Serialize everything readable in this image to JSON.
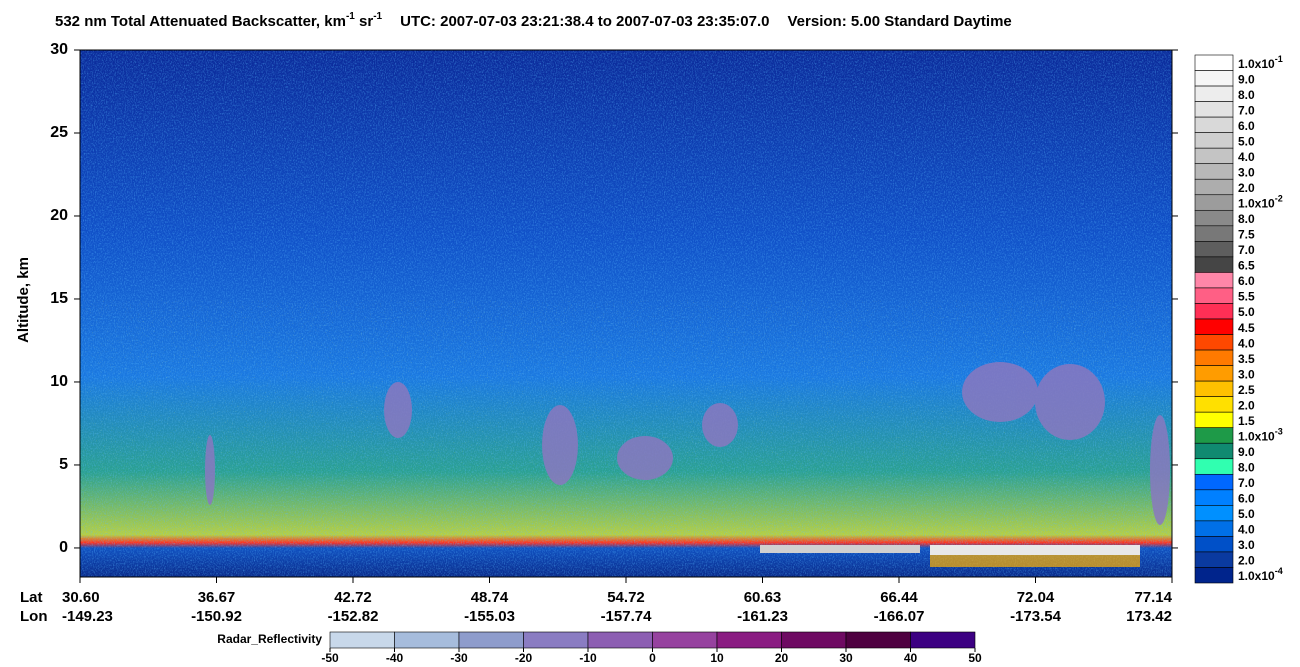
{
  "chart_data": {
    "type": "heatmap",
    "title": {
      "main": "532 nm Total Attenuated Backscatter, km",
      "sup1": "-1",
      "mid": " sr",
      "sup2": "-1",
      "utc": "UTC:  2007-07-03 23:21:38.4  to  2007-07-03 23:35:07.0",
      "version": "Version: 5.00  Standard  Daytime"
    },
    "ylabel": "Altitude, km",
    "ylim": [
      -1.75,
      30
    ],
    "yticks": [
      0,
      5,
      10,
      15,
      20,
      25,
      30
    ],
    "x_rows": [
      "Lat",
      "Lon"
    ],
    "lat": [
      "30.60",
      "36.67",
      "42.72",
      "48.74",
      "54.72",
      "60.63",
      "66.44",
      "72.04",
      "77.14"
    ],
    "lon": [
      "-149.23",
      "-150.92",
      "-152.82",
      "-155.03",
      "-157.74",
      "-161.23",
      "-166.07",
      "-173.54",
      "173.42"
    ],
    "colorbar": [
      {
        "label": "1.0x10",
        "sup": "-1",
        "color": "#ffffff"
      },
      {
        "label": "9.0",
        "color": "#f6f6f6"
      },
      {
        "label": "8.0",
        "color": "#ededed"
      },
      {
        "label": "7.0",
        "color": "#e3e3e3"
      },
      {
        "label": "6.0",
        "color": "#d9d9d9"
      },
      {
        "label": "5.0",
        "color": "#cfcfcf"
      },
      {
        "label": "4.0",
        "color": "#c4c4c4"
      },
      {
        "label": "3.0",
        "color": "#b8b8b8"
      },
      {
        "label": "2.0",
        "color": "#adadad"
      },
      {
        "label": "1.0x10",
        "sup": "-2",
        "color": "#9c9c9c"
      },
      {
        "label": "8.0",
        "color": "#8a8a8a"
      },
      {
        "label": "7.5",
        "color": "#787878"
      },
      {
        "label": "7.0",
        "color": "#5e5e5e"
      },
      {
        "label": "6.5",
        "color": "#454545"
      },
      {
        "label": "6.0",
        "color": "#ff86a8"
      },
      {
        "label": "5.5",
        "color": "#ff5f85"
      },
      {
        "label": "5.0",
        "color": "#ff2f55"
      },
      {
        "label": "4.5",
        "color": "#ff0000"
      },
      {
        "label": "4.0",
        "color": "#ff4800"
      },
      {
        "label": "3.5",
        "color": "#ff7a00"
      },
      {
        "label": "3.0",
        "color": "#ff9c00"
      },
      {
        "label": "2.5",
        "color": "#ffc000"
      },
      {
        "label": "2.0",
        "color": "#ffe000"
      },
      {
        "label": "1.5",
        "color": "#ffff00"
      },
      {
        "label": "1.0x10",
        "sup": "-3",
        "color": "#1e9a48"
      },
      {
        "label": "9.0",
        "color": "#108a70"
      },
      {
        "label": "8.0",
        "color": "#30ffb0"
      },
      {
        "label": "7.0",
        "color": "#0068ff"
      },
      {
        "label": "6.0",
        "color": "#0080ff"
      },
      {
        "label": "5.0",
        "color": "#0090ff"
      },
      {
        "label": "4.0",
        "color": "#0070e8"
      },
      {
        "label": "3.0",
        "color": "#0050c8"
      },
      {
        "label": "2.0",
        "color": "#0a3aa0"
      },
      {
        "label": "1.0x10",
        "sup": "-4",
        "color": "#00248c"
      }
    ],
    "radar": {
      "label": "Radar_Reflectivity",
      "lim": [
        -50,
        50
      ],
      "ticks": [
        -50,
        -40,
        -30,
        -20,
        -10,
        0,
        10,
        20,
        30,
        40,
        50
      ],
      "colors": [
        "#c8d8ea",
        "#a6bcdc",
        "#8e9ccc",
        "#8a7cc2",
        "#8c5eb2",
        "#96429f",
        "#8a1c82",
        "#6e0a62",
        "#4e0040",
        "#3c0082"
      ]
    }
  }
}
